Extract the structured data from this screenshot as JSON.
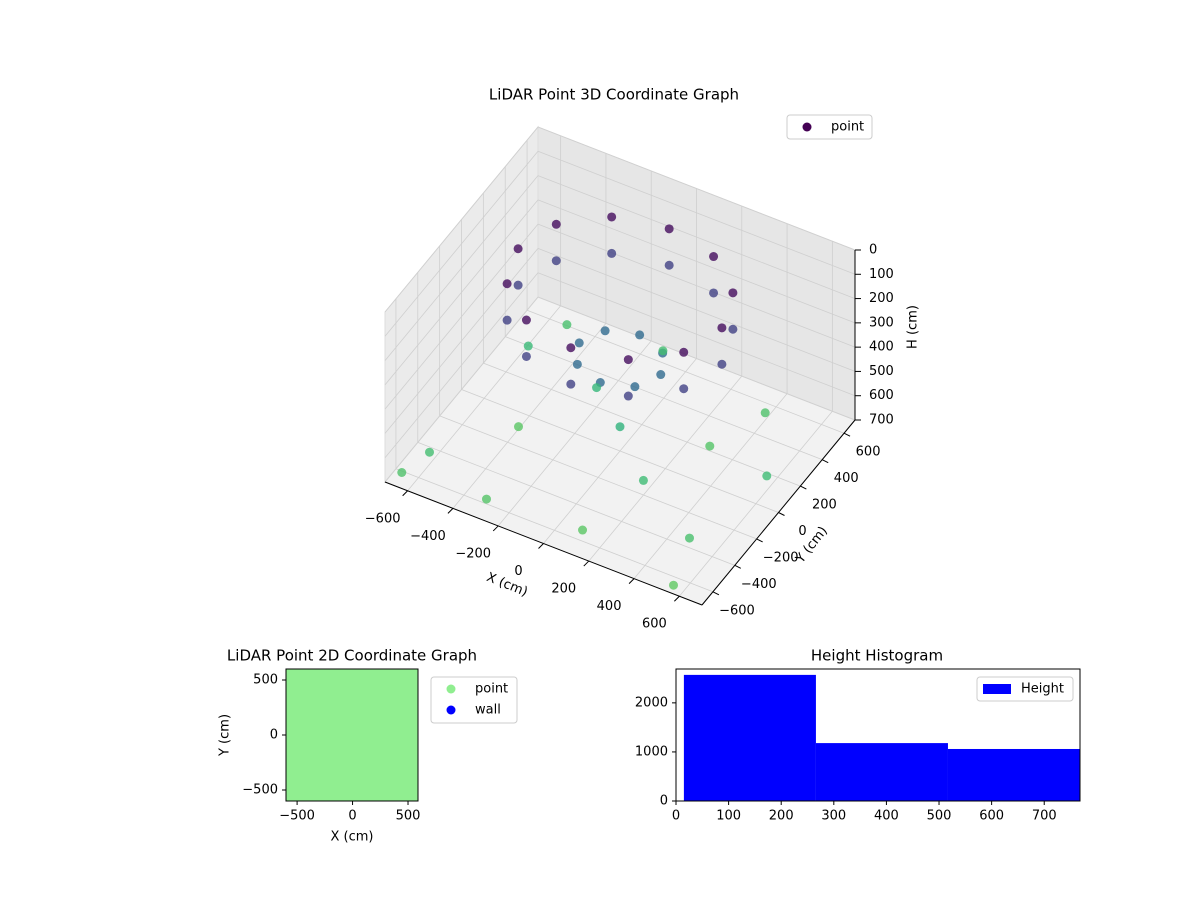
{
  "chart_data": [
    {
      "type": "scatter3d",
      "title": "LiDAR Point 3D Coordinate Graph",
      "x_label": "X (cm)",
      "y_label": "Y (cm)",
      "z_label": "H (cm)",
      "colormap": "viridis",
      "legend": "upper right",
      "xlim": [
        -700,
        700
      ],
      "ylim": [
        -700,
        700
      ],
      "zlim": [
        700,
        0
      ],
      "xticks": [
        {
          "value": -600,
          "label": "−600"
        },
        {
          "value": -400,
          "label": "−400"
        },
        {
          "value": -200,
          "label": "−200"
        },
        0,
        200,
        400,
        600
      ],
      "yticks": [
        {
          "value": -600,
          "label": "−600"
        },
        {
          "value": -400,
          "label": "−400"
        },
        {
          "value": -200,
          "label": "−200"
        },
        0,
        200,
        400,
        600
      ],
      "zticks": [
        0,
        100,
        200,
        300,
        400,
        500,
        600,
        700
      ],
      "series": [
        {
          "name": "point",
          "color": "#440154",
          "x": [
            450,
            390,
            225,
            0,
            -225,
            -390,
            -450,
            -390,
            -225,
            0,
            225,
            390,
            450,
            390,
            225,
            0,
            -225,
            -390,
            -450,
            -390,
            -225,
            0,
            225,
            390,
            180,
            0,
            -180,
            0,
            127,
            -127,
            127,
            -127,
            -600,
            -300,
            100,
            500,
            600,
            400,
            -100,
            -550,
            -400,
            0,
            200,
            -200,
            300,
            -500,
            550,
            -650
          ],
          "y": [
            0,
            225,
            390,
            450,
            390,
            225,
            0,
            -225,
            -390,
            -450,
            -390,
            -225,
            0,
            225,
            390,
            450,
            390,
            225,
            0,
            -225,
            -390,
            -450,
            -390,
            -225,
            0,
            180,
            0,
            -180,
            127,
            -127,
            -127,
            127,
            -500,
            -600,
            -550,
            -400,
            100,
            500,
            600,
            300,
            -100,
            0,
            -200,
            200,
            200,
            550,
            -650,
            -650
          ],
          "z": [
            30,
            30,
            30,
            30,
            30,
            30,
            30,
            30,
            30,
            30,
            30,
            30,
            180,
            180,
            180,
            180,
            180,
            180,
            180,
            180,
            180,
            180,
            180,
            180,
            320,
            320,
            320,
            320,
            320,
            320,
            320,
            320,
            650,
            680,
            690,
            660,
            640,
            670,
            650,
            630,
            690,
            600,
            640,
            620,
            680,
            660,
            700,
            670
          ]
        }
      ]
    },
    {
      "type": "scatter",
      "title": "LiDAR Point 2D Coordinate Graph",
      "x_label": "X (cm)",
      "y_label": "Y (cm)",
      "legend": "outside right",
      "xlim": [
        -600,
        590
      ],
      "ylim": [
        -600,
        600
      ],
      "xticks": [
        {
          "value": -500,
          "label": "−500"
        },
        0,
        500
      ],
      "yticks": [
        {
          "value": -500,
          "label": "−500"
        },
        0,
        500
      ],
      "series": [
        {
          "name": "point",
          "color": "#90ee90",
          "x": [
            -600,
            -600,
            -600,
            -600,
            -600,
            -600,
            -600,
            -400,
            -400,
            -400,
            -400,
            -400,
            -400,
            -400,
            -200,
            -200,
            -200,
            -200,
            -200,
            -200,
            -200,
            0,
            0,
            0,
            0,
            0,
            0,
            0,
            200,
            200,
            200,
            200,
            200,
            200,
            200,
            400,
            400,
            400,
            400,
            400,
            400,
            400,
            580,
            580,
            580,
            580,
            580,
            580,
            580
          ],
          "y": [
            -600,
            -400,
            -200,
            0,
            200,
            400,
            520,
            -600,
            -400,
            -200,
            0,
            200,
            400,
            580,
            -600,
            -400,
            -200,
            0,
            200,
            400,
            600,
            -600,
            -400,
            -200,
            0,
            200,
            400,
            600,
            -600,
            -400,
            -200,
            0,
            200,
            400,
            600,
            -600,
            -400,
            -200,
            0,
            200,
            400,
            600,
            -600,
            -400,
            -200,
            0,
            200,
            400,
            600
          ]
        },
        {
          "name": "wall",
          "color": "#0000ff",
          "x": [],
          "y": []
        }
      ]
    },
    {
      "type": "histogram",
      "title": "Height Histogram",
      "legend": "upper right",
      "xlim": [
        0,
        768
      ],
      "ylim": [
        0,
        2690
      ],
      "xticks": [
        0,
        100,
        200,
        300,
        400,
        500,
        600,
        700
      ],
      "yticks": [
        0,
        1000,
        2000
      ],
      "series": [
        {
          "name": "Height",
          "color": "#0000ff",
          "bins": [
            15,
            266,
            517,
            768
          ],
          "values": [
            2570,
            1180,
            1060
          ]
        }
      ]
    }
  ]
}
